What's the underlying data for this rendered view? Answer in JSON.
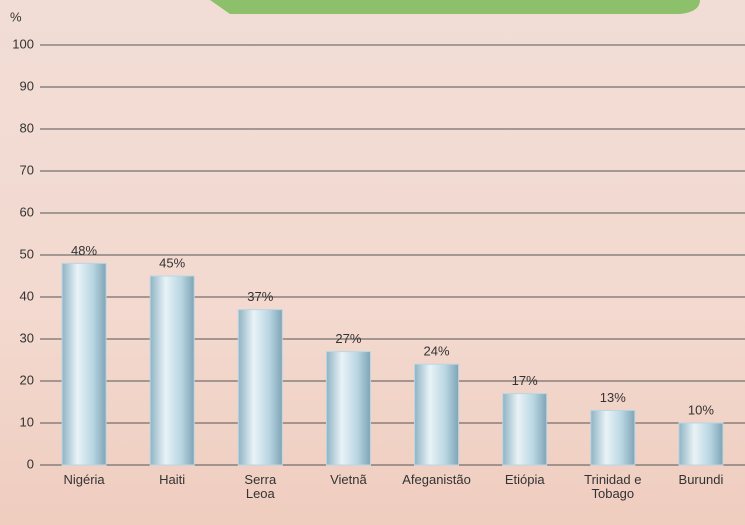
{
  "chart_data": {
    "type": "bar",
    "y_label": "%",
    "categories": [
      "Nigéria",
      "Haiti",
      "Serra\nLeoa",
      "Vietnã",
      "Afeganistão",
      "Etiópia",
      "Trinidad e\nTobago",
      "Burundi"
    ],
    "values": [
      48,
      45,
      37,
      27,
      24,
      17,
      13,
      10
    ],
    "value_labels": [
      "48%",
      "45%",
      "37%",
      "27%",
      "24%",
      "17%",
      "13%",
      "10%"
    ],
    "color": "#b9d6e2",
    "ylim": [
      0,
      100
    ],
    "yticks": [
      0,
      10,
      20,
      30,
      40,
      50,
      60,
      70,
      80,
      90,
      100
    ],
    "grid": true
  }
}
